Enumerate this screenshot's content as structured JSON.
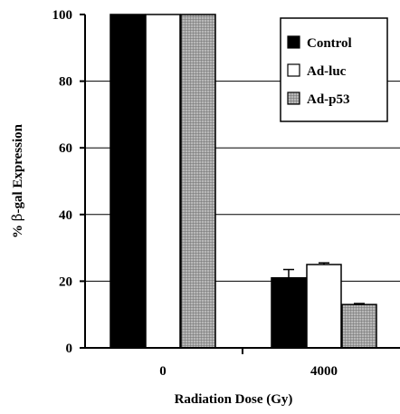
{
  "chart_data": {
    "type": "bar",
    "categories": [
      "0",
      "4000"
    ],
    "series": [
      {
        "name": "Control",
        "values": [
          100,
          21
        ],
        "errors": [
          0,
          2.5
        ],
        "color": "#000000",
        "pattern": "solid"
      },
      {
        "name": "Ad-luc",
        "values": [
          100,
          25
        ],
        "errors": [
          0,
          0.5
        ],
        "color": "#ffffff",
        "pattern": "solid"
      },
      {
        "name": "Ad-p53",
        "values": [
          100,
          13
        ],
        "errors": [
          0,
          0.3
        ],
        "color": "#9a9a9a",
        "pattern": "crosshatch"
      }
    ],
    "xlabel": "Radiation Dose (Gy)",
    "ylabel_prefix": "% ",
    "ylabel_symbol": "β",
    "ylabel_suffix": "-gal Expression",
    "ylim": [
      0,
      100
    ],
    "yticks": [
      0,
      20,
      40,
      60,
      80,
      100
    ],
    "ytick_labels": [
      "0",
      "20",
      "40",
      "60",
      "80",
      "100"
    ],
    "gridlines": [
      20,
      40,
      60,
      80
    ],
    "legend_position": "top-right"
  }
}
